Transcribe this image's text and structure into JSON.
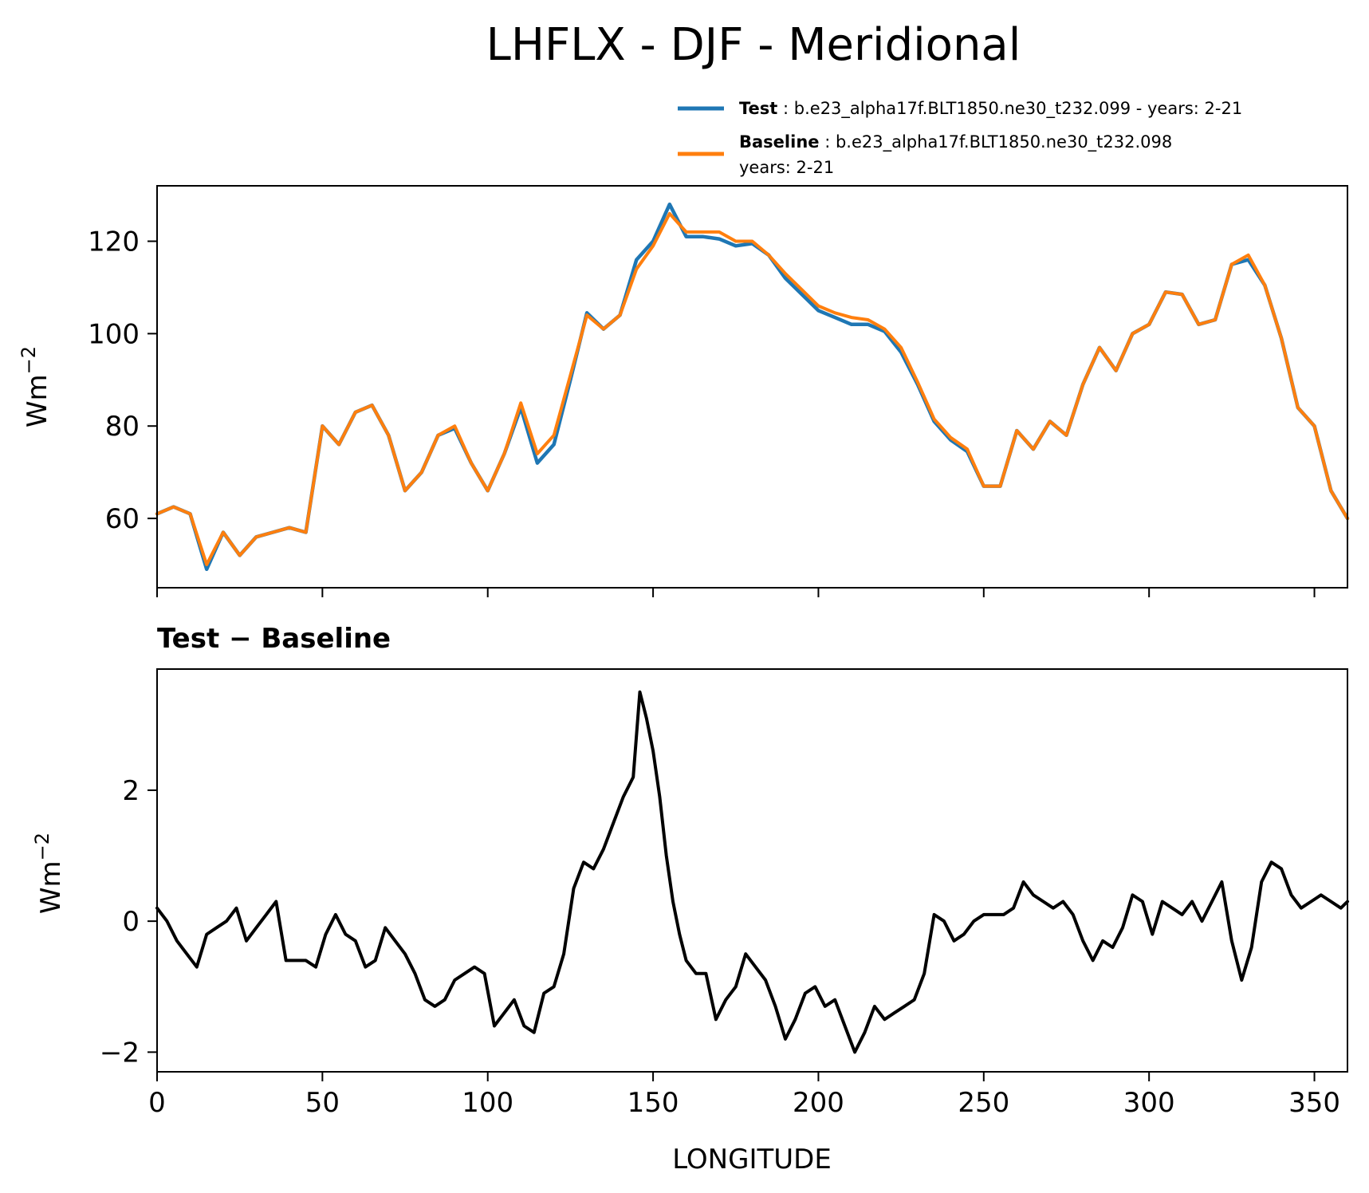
{
  "figure": {
    "title": "LHFLX - DJF - Meridional",
    "xlabel": "LONGITUDE"
  },
  "legend": {
    "test_label": "Test",
    "test_text": ": b.e23_alpha17f.BLT1850.ne30_t232.099 - years: 2-21",
    "baseline_label": "Baseline",
    "baseline_text": ": b.e23_alpha17f.BLT1850.ne30_t232.098",
    "baseline_text_2": "years: 2-21"
  },
  "colors": {
    "test": "#1f77b4",
    "baseline": "#ff7f0e",
    "difference": "#000000"
  },
  "chart_data": [
    {
      "type": "line",
      "title": "LHFLX - DJF - Meridional",
      "xlabel": "",
      "ylabel": "Wm",
      "ylabel_superscript": "−2",
      "xlim": [
        0,
        360
      ],
      "ylim": [
        45,
        132
      ],
      "xticks": [
        0,
        50,
        100,
        150,
        200,
        250,
        300,
        350
      ],
      "yticks": [
        60,
        80,
        100,
        120
      ],
      "ytick_labels": [
        "60",
        "80",
        "100",
        "120"
      ],
      "legend_position": "upper-right, above axes",
      "x": [
        0,
        5,
        10,
        15,
        20,
        25,
        30,
        35,
        40,
        45,
        50,
        55,
        60,
        65,
        70,
        75,
        80,
        85,
        90,
        95,
        100,
        105,
        110,
        115,
        120,
        125,
        130,
        135,
        140,
        145,
        150,
        155,
        160,
        165,
        170,
        175,
        180,
        185,
        190,
        195,
        200,
        205,
        210,
        215,
        220,
        225,
        230,
        235,
        240,
        245,
        250,
        255,
        260,
        265,
        270,
        275,
        280,
        285,
        290,
        295,
        300,
        305,
        310,
        315,
        320,
        325,
        330,
        335,
        340,
        345,
        350,
        355,
        360
      ],
      "series": [
        {
          "name": "Test",
          "values": [
            61,
            62.5,
            61,
            49,
            57,
            52,
            56,
            57,
            58,
            57,
            80,
            76,
            83,
            84.5,
            78,
            66,
            70,
            78,
            79.5,
            72,
            66,
            74,
            84,
            72,
            76,
            90,
            104.5,
            101,
            104,
            116,
            120,
            128,
            121,
            121,
            120.5,
            119,
            119.5,
            117,
            112,
            108.5,
            105,
            103.5,
            102,
            102,
            100.5,
            96,
            89,
            81,
            77,
            74.5,
            67,
            67,
            79,
            75,
            81,
            78,
            89,
            97,
            92,
            100,
            102,
            109,
            108.5,
            102,
            103,
            115,
            116,
            110.5,
            99,
            84,
            80,
            66,
            60
          ]
        },
        {
          "name": "Baseline",
          "values": [
            61,
            62.5,
            61,
            50,
            57,
            52,
            56,
            57,
            58,
            57,
            80,
            76,
            83,
            84.5,
            78,
            66,
            70,
            78,
            80,
            72,
            66,
            74,
            85,
            74,
            78,
            91,
            104,
            101,
            104,
            114,
            119,
            126,
            122,
            122,
            122,
            120,
            120,
            117,
            113,
            109.5,
            106,
            104.5,
            103.5,
            103,
            101,
            97,
            89.5,
            81.5,
            77.5,
            75,
            67,
            67,
            79,
            75,
            81,
            78,
            89,
            97,
            92,
            100,
            102,
            109,
            108.5,
            102,
            103,
            115,
            117,
            110.5,
            99,
            84,
            80,
            66,
            60
          ]
        }
      ]
    },
    {
      "type": "line",
      "title": "Test − Baseline",
      "xlabel": "LONGITUDE",
      "ylabel": "Wm",
      "ylabel_superscript": "−2",
      "xlim": [
        0,
        360
      ],
      "ylim": [
        -2.3,
        3.85
      ],
      "xticks": [
        0,
        50,
        100,
        150,
        200,
        250,
        300,
        350
      ],
      "xtick_labels": [
        "0",
        "50",
        "100",
        "150",
        "200",
        "250",
        "300",
        "350"
      ],
      "yticks": [
        -2,
        0,
        2
      ],
      "ytick_labels": [
        "−2",
        "0",
        "2"
      ],
      "x": [
        0,
        3,
        6,
        9,
        12,
        15,
        18,
        21,
        24,
        27,
        30,
        33,
        36,
        39,
        42,
        45,
        48,
        51,
        54,
        57,
        60,
        63,
        66,
        69,
        72,
        75,
        78,
        81,
        84,
        87,
        90,
        93,
        96,
        99,
        102,
        105,
        108,
        111,
        114,
        117,
        120,
        123,
        126,
        129,
        132,
        135,
        138,
        141,
        144,
        146,
        148,
        150,
        152,
        154,
        156,
        158,
        160,
        163,
        166,
        169,
        172,
        175,
        178,
        181,
        184,
        187,
        190,
        193,
        196,
        199,
        202,
        205,
        208,
        211,
        214,
        217,
        220,
        223,
        226,
        229,
        232,
        235,
        238,
        241,
        244,
        247,
        250,
        253,
        256,
        259,
        262,
        265,
        268,
        271,
        274,
        277,
        280,
        283,
        286,
        289,
        292,
        295,
        298,
        301,
        304,
        307,
        310,
        313,
        316,
        319,
        322,
        325,
        328,
        331,
        334,
        337,
        340,
        343,
        346,
        349,
        352,
        355,
        358,
        360
      ],
      "series": [
        {
          "name": "Test − Baseline",
          "values": [
            0.2,
            0.0,
            -0.3,
            -0.5,
            -0.7,
            -0.2,
            -0.1,
            0.0,
            0.2,
            -0.3,
            -0.1,
            0.1,
            0.3,
            -0.6,
            -0.6,
            -0.6,
            -0.7,
            -0.2,
            0.1,
            -0.2,
            -0.3,
            -0.7,
            -0.6,
            -0.1,
            -0.3,
            -0.5,
            -0.8,
            -1.2,
            -1.3,
            -1.2,
            -0.9,
            -0.8,
            -0.7,
            -0.8,
            -1.6,
            -1.4,
            -1.2,
            -1.6,
            -1.7,
            -1.1,
            -1.0,
            -0.5,
            0.5,
            0.9,
            0.8,
            1.1,
            1.5,
            1.9,
            2.2,
            3.5,
            3.1,
            2.6,
            1.9,
            1.0,
            0.3,
            -0.2,
            -0.6,
            -0.8,
            -0.8,
            -1.5,
            -1.2,
            -1.0,
            -0.5,
            -0.7,
            -0.9,
            -1.3,
            -1.8,
            -1.5,
            -1.1,
            -1.0,
            -1.3,
            -1.2,
            -1.6,
            -2.0,
            -1.7,
            -1.3,
            -1.5,
            -1.4,
            -1.3,
            -1.2,
            -0.8,
            0.1,
            0.0,
            -0.3,
            -0.2,
            0.0,
            0.1,
            0.1,
            0.1,
            0.2,
            0.6,
            0.4,
            0.3,
            0.2,
            0.3,
            0.1,
            -0.3,
            -0.6,
            -0.3,
            -0.4,
            -0.1,
            0.4,
            0.3,
            -0.2,
            0.3,
            0.2,
            0.1,
            0.3,
            0.0,
            0.3,
            0.6,
            -0.3,
            -0.9,
            -0.4,
            0.6,
            0.9,
            0.8,
            0.4,
            0.2,
            0.3,
            0.4,
            0.3,
            0.2,
            0.3
          ]
        }
      ]
    }
  ]
}
